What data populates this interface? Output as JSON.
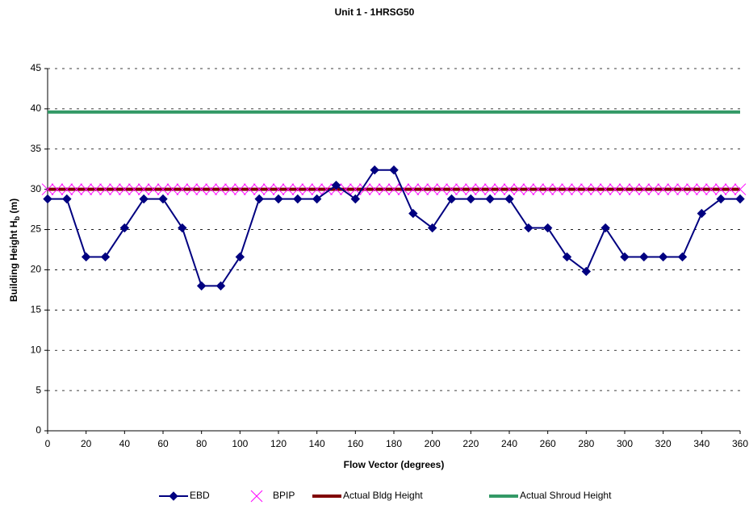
{
  "chart_data": {
    "type": "line",
    "title": "Unit 1 - 1HRSG50",
    "x_label": "Flow Vector (degrees)",
    "y_label": [
      "Building Height H",
      "b",
      " (m)"
    ],
    "xlim": [
      0,
      360
    ],
    "xticks": [
      0,
      20,
      40,
      60,
      80,
      100,
      120,
      140,
      160,
      180,
      200,
      220,
      240,
      260,
      280,
      300,
      320,
      340,
      360
    ],
    "ylim": [
      0,
      45
    ],
    "yticks": [
      0,
      5,
      10,
      15,
      20,
      25,
      30,
      35,
      40,
      45
    ],
    "grid": true,
    "legend": "bottom",
    "series": [
      {
        "name": "EBD",
        "color": "#000080",
        "marker": "diamond",
        "line": true,
        "x": [
          0,
          10,
          20,
          30,
          40,
          50,
          60,
          70,
          80,
          90,
          100,
          110,
          120,
          130,
          140,
          150,
          160,
          170,
          180,
          190,
          200,
          210,
          220,
          230,
          240,
          250,
          260,
          270,
          280,
          290,
          300,
          310,
          320,
          330,
          340,
          350,
          360
        ],
        "values": [
          28.8,
          28.8,
          21.6,
          21.6,
          25.2,
          28.8,
          28.8,
          25.2,
          18,
          18,
          21.6,
          28.8,
          28.8,
          28.8,
          28.8,
          30.5,
          28.8,
          32.4,
          32.4,
          27,
          25.2,
          28.8,
          28.8,
          28.8,
          28.8,
          25.2,
          25.2,
          21.6,
          19.8,
          25.2,
          21.6,
          21.6,
          21.6,
          21.6,
          27,
          28.8,
          28.8
        ]
      },
      {
        "name": "BPIP",
        "color": "#ff00ff",
        "marker": "x",
        "line": false,
        "x": [
          0,
          5,
          10,
          15,
          20,
          25,
          30,
          35,
          40,
          45,
          50,
          55,
          60,
          65,
          70,
          75,
          80,
          85,
          90,
          95,
          100,
          105,
          110,
          115,
          120,
          125,
          130,
          135,
          140,
          145,
          150,
          155,
          160,
          165,
          170,
          175,
          180,
          185,
          190,
          195,
          200,
          205,
          210,
          215,
          220,
          225,
          230,
          235,
          240,
          245,
          250,
          255,
          260,
          265,
          270,
          275,
          280,
          285,
          290,
          295,
          300,
          305,
          310,
          315,
          320,
          325,
          330,
          335,
          340,
          345,
          350,
          355,
          360
        ],
        "values": [
          30,
          30,
          30,
          30,
          30,
          30,
          30,
          30,
          30,
          30,
          30,
          30,
          30,
          30,
          30,
          30,
          30,
          30,
          30,
          30,
          30,
          30,
          30,
          30,
          30,
          30,
          30,
          30,
          30,
          30,
          30,
          30,
          30,
          30,
          30,
          30,
          30,
          30,
          30,
          30,
          30,
          30,
          30,
          30,
          30,
          30,
          30,
          30,
          30,
          30,
          30,
          30,
          30,
          30,
          30,
          30,
          30,
          30,
          30,
          30,
          30,
          30,
          30,
          30,
          30,
          30,
          30,
          30,
          30,
          30,
          30,
          30,
          30
        ]
      },
      {
        "name": "Actual Bldg Height",
        "color": "#800000",
        "marker": "none",
        "line": true,
        "x": [
          0,
          360
        ],
        "values": [
          30,
          30
        ]
      },
      {
        "name": "Actual Shroud Height",
        "color": "#339966",
        "marker": "none",
        "line": true,
        "x": [
          0,
          360
        ],
        "values": [
          39.6,
          39.6
        ]
      }
    ]
  }
}
